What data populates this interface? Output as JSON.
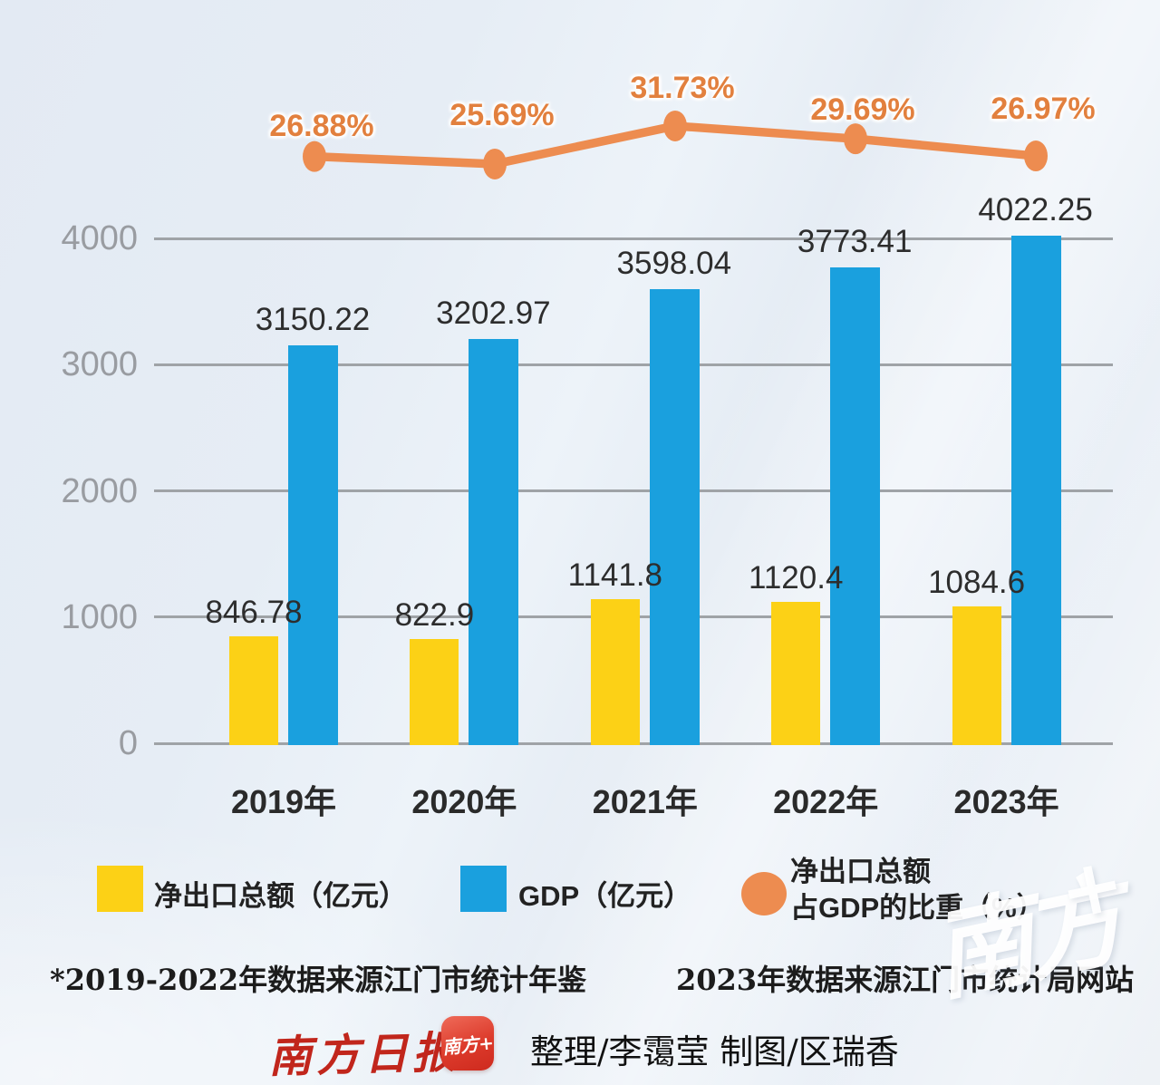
{
  "chart_data": {
    "type": "bar+line combo",
    "categories": [
      "2019年",
      "2020年",
      "2021年",
      "2022年",
      "2023年"
    ],
    "series": [
      {
        "name": "净出口总额（亿元）",
        "type": "bar",
        "color": "#FCD116",
        "values": [
          846.78,
          822.9,
          1141.8,
          1120.4,
          1084.6
        ],
        "labels": [
          "846.78",
          "822.9",
          "1141.8",
          "1120.4",
          "1084.6"
        ]
      },
      {
        "name": "GDP（亿元）",
        "type": "bar",
        "color": "#1AA0DE",
        "values": [
          3150.22,
          3202.97,
          3598.04,
          3773.41,
          4022.25
        ],
        "labels": [
          "3150.22",
          "3202.97",
          "3598.04",
          "3773.41",
          "4022.25"
        ]
      },
      {
        "name": "净出口总额占GDP的比重（%）",
        "type": "line",
        "color": "#ED8C50",
        "values": [
          26.88,
          25.69,
          31.73,
          29.69,
          26.97
        ],
        "labels": [
          "26.88%",
          "25.69%",
          "31.73%",
          "29.69%",
          "26.97%"
        ]
      }
    ],
    "y_axis": {
      "ticks": [
        0,
        1000,
        2000,
        3000,
        4000
      ],
      "tick_labels": [
        "0",
        "1000",
        "2000",
        "3000",
        "4000"
      ],
      "range": [
        0,
        4000
      ]
    },
    "grid": true,
    "legend_position": "bottom"
  },
  "legend": {
    "items": [
      {
        "label": "净出口总额（亿元）",
        "swatch": "square",
        "color": "#FCD116"
      },
      {
        "label": "GDP（亿元）",
        "swatch": "square",
        "color": "#1AA0DE"
      },
      {
        "label_line1": "净出口总额",
        "label_line2": "占GDP的比重（%）",
        "swatch": "circle",
        "color": "#ED8C50"
      }
    ]
  },
  "footnote": {
    "part1": "*2019-2022年数据来源江门市统计年鉴",
    "part2": "2023年数据来源江门市统计局网站"
  },
  "branding": {
    "newspaper_logo": "南方日报",
    "app_icon_text": "南方+",
    "credits": "整理/李霭莹  制图/区瑞香",
    "watermark_main": "南方",
    "watermark_plus": "+"
  },
  "colors": {
    "bar_yellow": "#FCD116",
    "bar_blue": "#1AA0DE",
    "line_orange": "#ED8C50",
    "grid": "#9FA3A7",
    "axis_text": "#999CA1",
    "value_text": "#2D2D2D",
    "percent_text": "#E2803E",
    "logo_red": "#C1261C"
  }
}
